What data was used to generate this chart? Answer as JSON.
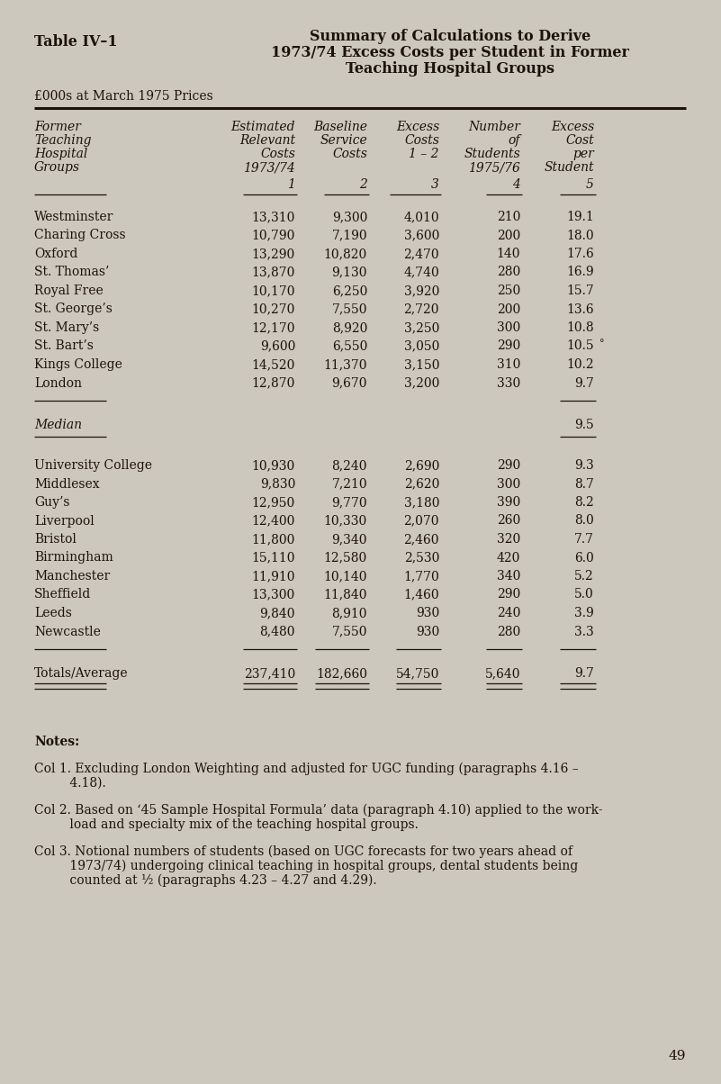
{
  "bg_color": "#cdc8be",
  "title_left": "Table IV–1",
  "title_center_line1": "Summary of Calculations to Derive",
  "title_center_line2": "1973/74 Excess Costs per Student in Former",
  "title_center_line3": "Teaching Hospital Groups",
  "subtitle": "£000s at March 1975 Prices",
  "group1_rows": [
    [
      "Westminster",
      "13,310",
      "9,300",
      "4,010",
      "210",
      "19.1"
    ],
    [
      "Charing Cross",
      "10,790",
      "7,190",
      "3,600",
      "200",
      "18.0"
    ],
    [
      "Oxford",
      "13,290",
      "10,820",
      "2,470",
      "140",
      "17.6"
    ],
    [
      "St. Thomas’",
      "13,870",
      "9,130",
      "4,740",
      "280",
      "16.9"
    ],
    [
      "Royal Free",
      "10,170",
      "6,250",
      "3,920",
      "250",
      "15.7"
    ],
    [
      "St. George’s",
      "10,270",
      "7,550",
      "2,720",
      "200",
      "13.6"
    ],
    [
      "St. Mary’s",
      "12,170",
      "8,920",
      "3,250",
      "300",
      "10.8"
    ],
    [
      "St. Bart’s",
      "9,600",
      "6,550",
      "3,050",
      "290",
      "10.5"
    ],
    [
      "Kings College",
      "14,520",
      "11,370",
      "3,150",
      "310",
      "10.2"
    ],
    [
      "London",
      "12,870",
      "9,670",
      "3,200",
      "330",
      "9.7"
    ]
  ],
  "median_label": "Median",
  "median_value": "9.5",
  "group2_rows": [
    [
      "University College",
      "10,930",
      "8,240",
      "2,690",
      "290",
      "9.3"
    ],
    [
      "Middlesex",
      "9,830",
      "7,210",
      "2,620",
      "300",
      "8.7"
    ],
    [
      "Guy’s",
      "12,950",
      "9,770",
      "3,180",
      "390",
      "8.2"
    ],
    [
      "Liverpool",
      "12,400",
      "10,330",
      "2,070",
      "260",
      "8.0"
    ],
    [
      "Bristol",
      "11,800",
      "9,340",
      "2,460",
      "320",
      "7.7"
    ],
    [
      "Birmingham",
      "15,110",
      "12,580",
      "2,530",
      "420",
      "6.0"
    ],
    [
      "Manchester",
      "11,910",
      "10,140",
      "1,770",
      "340",
      "5.2"
    ],
    [
      "Sheffield",
      "13,300",
      "11,840",
      "1,460",
      "290",
      "5.0"
    ],
    [
      "Leeds",
      "9,840",
      "8,910",
      "930",
      "240",
      "3.9"
    ],
    [
      "Newcastle",
      "8,480",
      "7,550",
      "930",
      "280",
      "3.3"
    ]
  ],
  "totals_row": [
    "Totals/Average",
    "237,410",
    "182,660",
    "54,750",
    "5,640",
    "9.7"
  ],
  "notes_title": "Notes:",
  "note1_first": "Col 1. Excluding London Weighting and adjusted for UGC funding (paragraphs 4.16 –",
  "note1_cont": "         4.18).",
  "note2_first": "Col 2. Based on ‘45 Sample Hospital Formula’ data (paragraph 4.10) applied to the work-",
  "note2_cont": "         load and specialty mix of the teaching hospital groups.",
  "note3_first": "Col 3. Notional numbers of students (based on UGC forecasts for two years ahead of",
  "note3_cont1": "         1973/74) undergoing clinical teaching in hospital groups, dental students being",
  "note3_cont2": "         counted at ½ (paragraphs 4.23 – 4.27 and 4.29).",
  "page_number": "49",
  "text_color": "#1c1209"
}
